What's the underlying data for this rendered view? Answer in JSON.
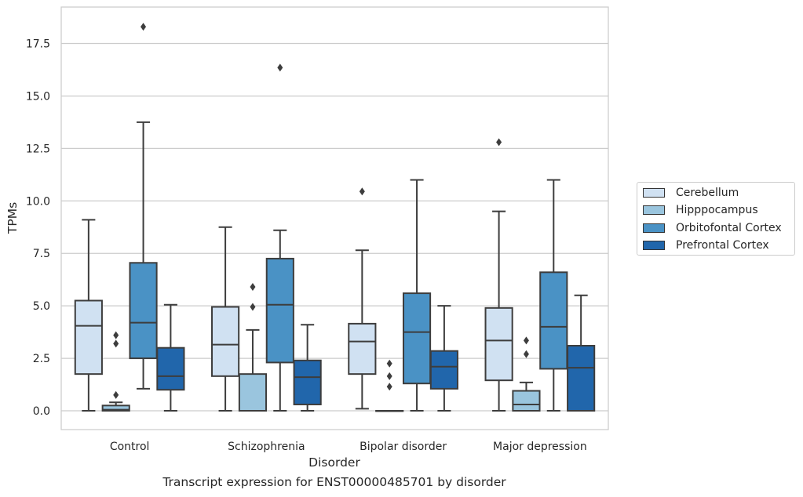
{
  "chart_data": {
    "type": "box",
    "ylabel": "TPMs",
    "xlabel": "Disorder",
    "caption": "Transcript expression for ENST00000485701 by disorder",
    "ylim": [
      -0.9,
      19.2
    ],
    "yticks": [
      0.0,
      2.5,
      5.0,
      7.5,
      10.0,
      12.5,
      15.0,
      17.5
    ],
    "ytick_labels": [
      "0.0",
      "2.5",
      "5.0",
      "7.5",
      "10.0",
      "12.5",
      "15.0",
      "17.5"
    ],
    "categories": [
      "Control",
      "Schizophrenia",
      "Bipolar disorder",
      "Major depression"
    ],
    "grid": "horizontal",
    "legend_position": "right",
    "series": [
      {
        "name": "Cerebellum",
        "color": "#d0e1f2",
        "boxes": [
          {
            "whislo": 0.0,
            "q1": 1.75,
            "med": 4.05,
            "q3": 5.25,
            "whishi": 9.1,
            "fliers": []
          },
          {
            "whislo": 0.0,
            "q1": 1.65,
            "med": 3.15,
            "q3": 4.95,
            "whishi": 8.75,
            "fliers": []
          },
          {
            "whislo": 0.1,
            "q1": 1.75,
            "med": 3.3,
            "q3": 4.15,
            "whishi": 7.65,
            "fliers": [
              10.45
            ]
          },
          {
            "whislo": 0.0,
            "q1": 1.45,
            "med": 3.35,
            "q3": 4.9,
            "whishi": 9.5,
            "fliers": [
              12.8
            ]
          }
        ]
      },
      {
        "name": "Hipppocampus",
        "color": "#9ac5de",
        "boxes": [
          {
            "whislo": 0.0,
            "q1": 0.0,
            "med": 0.05,
            "q3": 0.25,
            "whishi": 0.4,
            "fliers": [
              0.75,
              3.2,
              3.6
            ]
          },
          {
            "whislo": 0.0,
            "q1": 0.0,
            "med": 0.0,
            "q3": 1.75,
            "whishi": 3.85,
            "fliers": [
              4.95,
              5.9
            ]
          },
          {
            "whislo": 0.0,
            "q1": 0.0,
            "med": 0.0,
            "q3": 0.0,
            "whishi": 0.0,
            "fliers": [
              1.15,
              1.65,
              2.25
            ]
          },
          {
            "whislo": 0.0,
            "q1": 0.0,
            "med": 0.3,
            "q3": 0.95,
            "whishi": 1.35,
            "fliers": [
              2.7,
              3.35
            ]
          }
        ]
      },
      {
        "name": "Orbitofontal Cortex",
        "color": "#4a92c5",
        "boxes": [
          {
            "whislo": 1.05,
            "q1": 2.5,
            "med": 4.2,
            "q3": 7.05,
            "whishi": 13.75,
            "fliers": [
              18.3
            ]
          },
          {
            "whislo": 0.0,
            "q1": 2.3,
            "med": 5.05,
            "q3": 7.25,
            "whishi": 8.6,
            "fliers": [
              16.35
            ]
          },
          {
            "whislo": 0.0,
            "q1": 1.3,
            "med": 3.75,
            "q3": 5.6,
            "whishi": 11.0,
            "fliers": []
          },
          {
            "whislo": 0.0,
            "q1": 2.0,
            "med": 4.0,
            "q3": 6.6,
            "whishi": 11.0,
            "fliers": []
          }
        ]
      },
      {
        "name": "Prefrontal Cortex",
        "color": "#2166ab",
        "boxes": [
          {
            "whislo": 0.0,
            "q1": 1.0,
            "med": 1.65,
            "q3": 3.0,
            "whishi": 5.05,
            "fliers": []
          },
          {
            "whislo": 0.0,
            "q1": 0.3,
            "med": 1.6,
            "q3": 2.4,
            "whishi": 4.1,
            "fliers": []
          },
          {
            "whislo": 0.0,
            "q1": 1.05,
            "med": 2.1,
            "q3": 2.85,
            "whishi": 5.0,
            "fliers": []
          },
          {
            "whislo": 0.0,
            "q1": 0.0,
            "med": 2.05,
            "q3": 3.1,
            "whishi": 5.5,
            "fliers": []
          }
        ]
      }
    ]
  }
}
